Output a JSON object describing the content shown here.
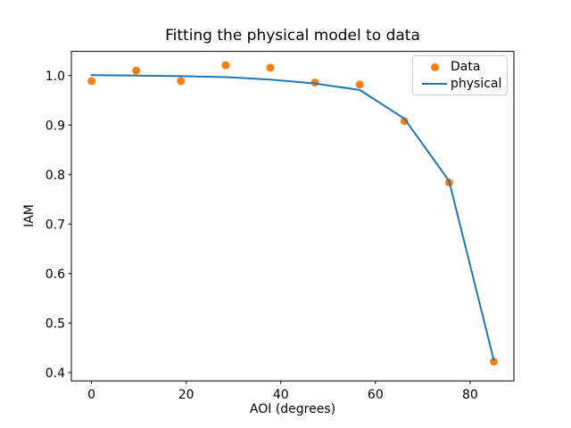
{
  "chart_data": {
    "type": "scatter+line",
    "title": "Fitting the physical model to data",
    "xlabel": "AOI (degrees)",
    "ylabel": "IAM",
    "xlim": [
      -4.25,
      89.25
    ],
    "ylim": [
      0.383,
      1.049
    ],
    "xticks": [
      0,
      20,
      40,
      60,
      80
    ],
    "xtick_labels": [
      "0",
      "20",
      "40",
      "60",
      "80"
    ],
    "yticks": [
      0.4,
      0.5,
      0.6,
      0.7,
      0.8,
      0.9,
      1.0
    ],
    "ytick_labels": [
      "0.4",
      "0.5",
      "0.6",
      "0.7",
      "0.8",
      "0.9",
      "1.0"
    ],
    "grid": false,
    "x": [
      0,
      9.44,
      18.89,
      28.33,
      37.78,
      47.22,
      56.67,
      66.11,
      75.56,
      85.0
    ],
    "series": [
      {
        "name": "Data",
        "kind": "scatter",
        "color": "#ff7f0e",
        "values": [
          0.989,
          1.01,
          0.989,
          1.021,
          1.016,
          0.986,
          0.982,
          0.908,
          0.784,
          0.422
        ]
      },
      {
        "name": "physical",
        "kind": "line",
        "color": "#1f77b4",
        "values": [
          1.001,
          1.0,
          0.999,
          0.997,
          0.992,
          0.984,
          0.971,
          0.913,
          0.787,
          0.425
        ]
      }
    ],
    "legend": {
      "position": "upper right",
      "entries": [
        "Data",
        "physical"
      ]
    },
    "colors": {
      "scatter": "#ff7f0e",
      "line": "#1f77b4",
      "text": "#000000",
      "spine": "#000000",
      "legend_border": "#cccccc",
      "background": "#ffffff"
    }
  }
}
